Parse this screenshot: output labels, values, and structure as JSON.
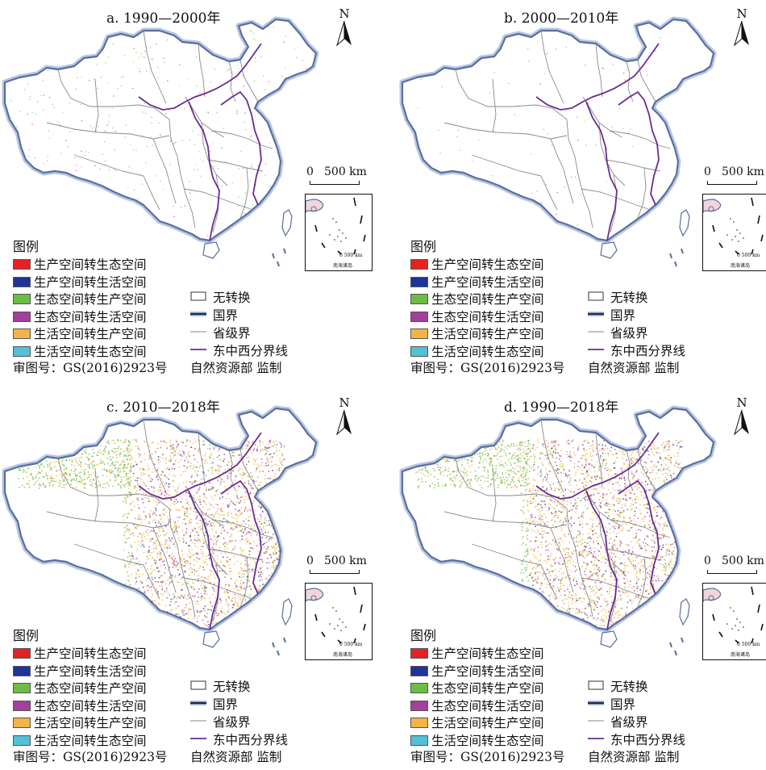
{
  "panels": [
    {
      "title": "a. 1990—2000年",
      "fill": "sparse"
    },
    {
      "title": "b. 2000—2010年",
      "fill": "none"
    },
    {
      "title": "c. 2010—2018年",
      "fill": "dense"
    },
    {
      "title": "d. 1990—2018年",
      "fill": "dense"
    }
  ],
  "common": {
    "north": "N",
    "scale_zero": "0",
    "scale_km": "500 km",
    "inset_scale": "0      500 km",
    "inset_label": "南海诸岛",
    "legend_title": "图例",
    "legend_items": [
      {
        "label": "生产空间转生态空间",
        "color": "#e32322"
      },
      {
        "label": "生产空间转生活空间",
        "color": "#1f3497"
      },
      {
        "label": "生态空间转生产空间",
        "color": "#6cbd45"
      },
      {
        "label": "生态空间转生活空间",
        "color": "#a2409a"
      },
      {
        "label": "生活空间转生产空间",
        "color": "#f3b346"
      },
      {
        "label": "生活空间转生态空间",
        "color": "#52c1d6"
      }
    ],
    "legend_lines": [
      {
        "label": "无转换",
        "icon": "box"
      },
      {
        "label": "国界",
        "icon": "thick-line"
      },
      {
        "label": "省级界",
        "icon": "thin-line"
      },
      {
        "label": "东中西分界线",
        "icon": "purple-line"
      }
    ],
    "review_no": "审图号：GS(2016)2923号",
    "supervisor": "自然资源部 监制"
  },
  "colors": {
    "border": "#5a6f9c",
    "border_glow": "#b8c6e6",
    "province": "#8a8a8a",
    "divider": "#6a2c91"
  }
}
